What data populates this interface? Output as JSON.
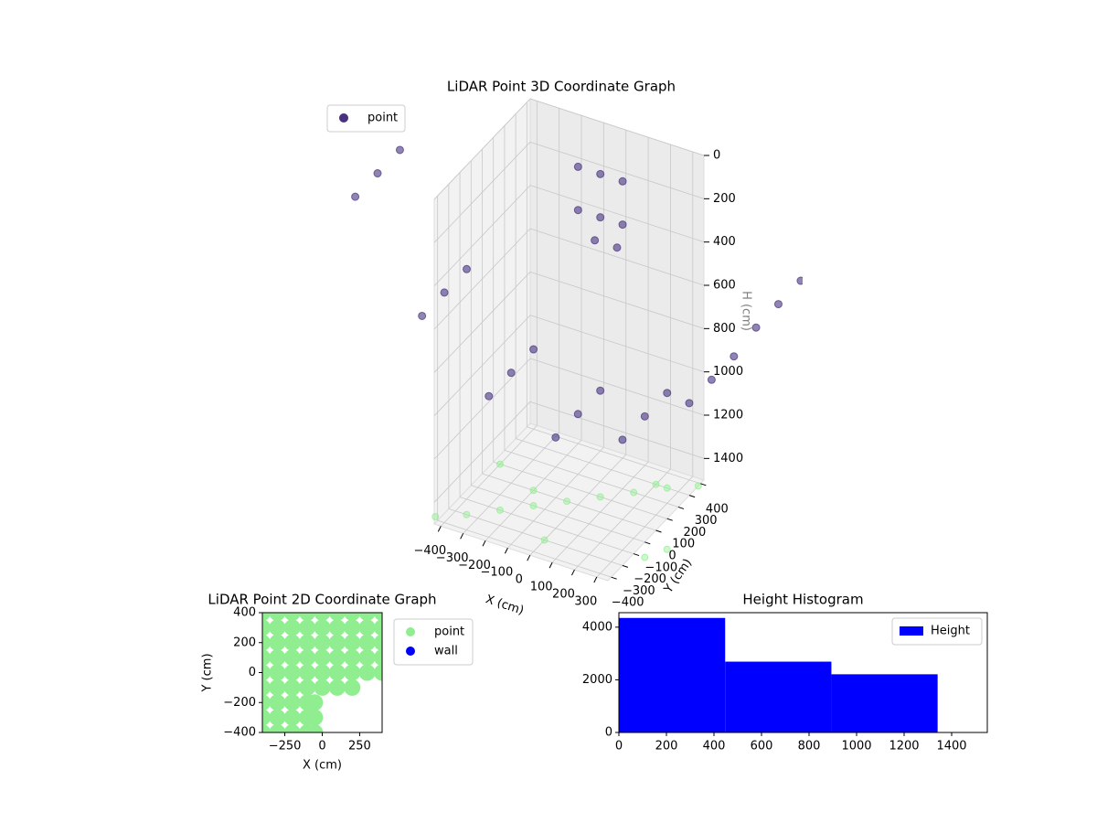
{
  "chart_data": [
    {
      "type": "scatter3d",
      "title": "LiDAR Point 3D Coordinate Graph",
      "xlabel": "X (cm)",
      "ylabel": "Y (cm)",
      "zlabel": "H (cm)",
      "xlim": [
        -430,
        350
      ],
      "ylim": [
        -430,
        430
      ],
      "zlim": [
        0,
        1500
      ],
      "z_inverted": true,
      "grid": true,
      "xticks": [
        {
          "value": -400,
          "label": "−400"
        },
        {
          "value": -300,
          "label": "−300"
        },
        {
          "value": -200,
          "label": "−200"
        },
        {
          "value": -100,
          "label": "−100"
        },
        0,
        100,
        200,
        300
      ],
      "yticks": [
        {
          "value": -400,
          "label": "−400"
        },
        {
          "value": -300,
          "label": "−300"
        },
        {
          "value": -200,
          "label": "−200"
        },
        {
          "value": -100,
          "label": "−100"
        },
        0,
        100,
        200,
        300,
        400
      ],
      "zticks": [
        0,
        200,
        400,
        600,
        800,
        1000,
        1200,
        1400
      ],
      "legend": "upper left",
      "series": [
        {
          "name": "point",
          "color": "#46327e",
          "x": [
            -900,
            -600,
            -300,
            0,
            300,
            600,
            900,
            -900,
            -600,
            -300,
            0,
            300,
            600,
            900,
            -900,
            -600,
            -300,
            0,
            300,
            600,
            900,
            -150,
            -150,
            -50,
            -50,
            50,
            50,
            -100,
            0
          ],
          "y": [
            -200,
            -200,
            -200,
            -200,
            -200,
            -200,
            -200,
            0,
            0,
            0,
            0,
            0,
            0,
            0,
            200,
            200,
            200,
            200,
            200,
            200,
            200,
            300,
            300,
            300,
            300,
            300,
            300,
            350,
            350
          ],
          "z": [
            270,
            720,
            990,
            1080,
            990,
            720,
            270,
            270,
            720,
            990,
            1080,
            990,
            720,
            270,
            270,
            720,
            990,
            1080,
            990,
            720,
            270,
            150,
            350,
            150,
            350,
            150,
            350,
            500,
            500
          ]
        },
        {
          "color": "#90ee90",
          "x": [
            -450,
            -350,
            -250,
            -150,
            -50,
            50,
            150,
            250,
            350,
            450,
            -400,
            -200,
            0,
            200,
            400
          ],
          "y": [
            -380,
            -300,
            -200,
            -100,
            0,
            100,
            200,
            300,
            380,
            -100,
            100,
            0,
            -300,
            300,
            -200
          ]
        }
      ]
    },
    {
      "type": "scatter",
      "title": "LiDAR Point 2D Coordinate Graph",
      "xlabel": "X (cm)",
      "ylabel": "Y (cm)",
      "xlim": [
        -400,
        400
      ],
      "ylim": [
        -400,
        400
      ],
      "xticks": [
        {
          "value": -250,
          "label": "−250"
        },
        0,
        250
      ],
      "yticks": [
        {
          "value": -400,
          "label": "−400"
        },
        {
          "value": -200,
          "label": "−200"
        },
        0,
        200,
        400
      ],
      "legend": "outside right",
      "series": [
        {
          "name": "point",
          "color": "#90ee90",
          "x": [
            -400,
            -300,
            -200,
            -100,
            0,
            100,
            200,
            300,
            400,
            -400,
            -300,
            -200,
            -100,
            0,
            100,
            200,
            300,
            400,
            -400,
            -300,
            -200,
            -100,
            0,
            100,
            200,
            300,
            400,
            -400,
            -300,
            -200,
            -100,
            0,
            100,
            200,
            300,
            400,
            -400,
            -300,
            -200,
            -100,
            0,
            100,
            200,
            300,
            400,
            -400,
            -300,
            -200,
            -100,
            0,
            100,
            200,
            -400,
            -300,
            -200,
            -100,
            -50,
            -400,
            -300,
            -200,
            -100,
            -50,
            -400,
            -300,
            -200,
            -100,
            -50
          ],
          "y": [
            400,
            400,
            400,
            400,
            400,
            400,
            400,
            400,
            400,
            300,
            300,
            300,
            300,
            300,
            300,
            300,
            300,
            300,
            200,
            200,
            200,
            200,
            200,
            200,
            200,
            200,
            200,
            100,
            100,
            100,
            100,
            100,
            100,
            100,
            100,
            100,
            0,
            0,
            0,
            0,
            0,
            0,
            0,
            0,
            0,
            -100,
            -100,
            -100,
            -100,
            -100,
            -100,
            -100,
            -200,
            -200,
            -200,
            -200,
            -200,
            -300,
            -300,
            -300,
            -300,
            -300,
            -400,
            -400,
            -400,
            -400,
            -400
          ]
        },
        {
          "name": "wall",
          "color": "#0000ff",
          "x": [],
          "y": []
        }
      ]
    },
    {
      "type": "histogram",
      "title": "Height Histogram",
      "bins": [
        0,
        447,
        894,
        1341
      ],
      "counts": [
        4350,
        2690,
        2210
      ],
      "color": "#0000ff",
      "name": "Height",
      "legend": "upper right",
      "xlim": [
        0,
        1550
      ],
      "ylim": [
        0,
        4550
      ],
      "xticks": [
        0,
        200,
        400,
        600,
        800,
        1000,
        1200,
        1400
      ],
      "yticks": [
        0,
        2000,
        4000
      ]
    }
  ]
}
